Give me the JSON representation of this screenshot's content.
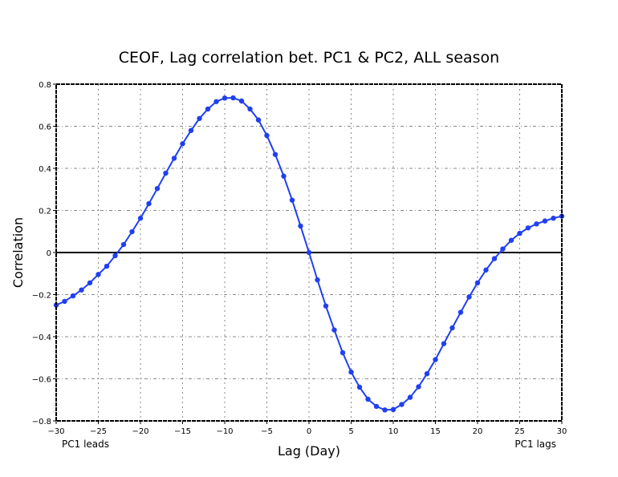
{
  "chart_data": {
    "type": "line",
    "title": "CEOF, Lag correlation bet. PC1 & PC2, ALL season",
    "xlabel": "Lag (Day)",
    "ylabel": "Correlation",
    "xlim": [
      -30,
      30
    ],
    "ylim": [
      -0.8,
      0.8
    ],
    "xticks": [
      -30,
      -25,
      -20,
      -15,
      -10,
      -5,
      0,
      5,
      10,
      15,
      20,
      25,
      30
    ],
    "yticks": [
      -0.8,
      -0.6,
      -0.4,
      -0.2,
      0,
      0.2,
      0.4,
      0.6,
      0.8
    ],
    "xtick_labels": [
      "−30",
      "−25",
      "−20",
      "−15",
      "−10",
      "−5",
      "0",
      "5",
      "10",
      "15",
      "20",
      "25",
      "30"
    ],
    "ytick_labels": [
      "−0.8",
      "−0.6",
      "−0.4",
      "−0.2",
      "0",
      "0.2",
      "0.4",
      "0.6",
      "0.8"
    ],
    "grid": true,
    "zero_line": true,
    "annotations": {
      "left": "PC1 leads",
      "right": "PC1 lags"
    },
    "series": [
      {
        "name": "Lag correlation",
        "color": "#2040f0",
        "x": [
          -30,
          -29,
          -28,
          -27,
          -26,
          -25,
          -24,
          -23,
          -22,
          -21,
          -20,
          -19,
          -18,
          -17,
          -16,
          -15,
          -14,
          -13,
          -12,
          -11,
          -10,
          -9,
          -8,
          -7,
          -6,
          -5,
          -4,
          -3,
          -2,
          -1,
          0,
          1,
          2,
          3,
          4,
          5,
          6,
          7,
          8,
          9,
          10,
          11,
          12,
          13,
          14,
          15,
          16,
          17,
          18,
          19,
          20,
          21,
          22,
          23,
          24,
          25,
          26,
          27,
          28,
          29,
          30
        ],
        "values": [
          -0.25,
          -0.232,
          -0.206,
          -0.178,
          -0.144,
          -0.104,
          -0.065,
          -0.015,
          0.038,
          0.099,
          0.163,
          0.232,
          0.304,
          0.377,
          0.448,
          0.517,
          0.58,
          0.637,
          0.682,
          0.717,
          0.734,
          0.735,
          0.72,
          0.682,
          0.63,
          0.556,
          0.466,
          0.363,
          0.249,
          0.126,
          0.0,
          -0.13,
          -0.254,
          -0.368,
          -0.476,
          -0.568,
          -0.64,
          -0.697,
          -0.731,
          -0.748,
          -0.746,
          -0.722,
          -0.688,
          -0.638,
          -0.576,
          -0.509,
          -0.433,
          -0.358,
          -0.284,
          -0.211,
          -0.144,
          -0.083,
          -0.029,
          0.017,
          0.058,
          0.091,
          0.117,
          0.136,
          0.15,
          0.163,
          0.173
        ]
      }
    ]
  }
}
